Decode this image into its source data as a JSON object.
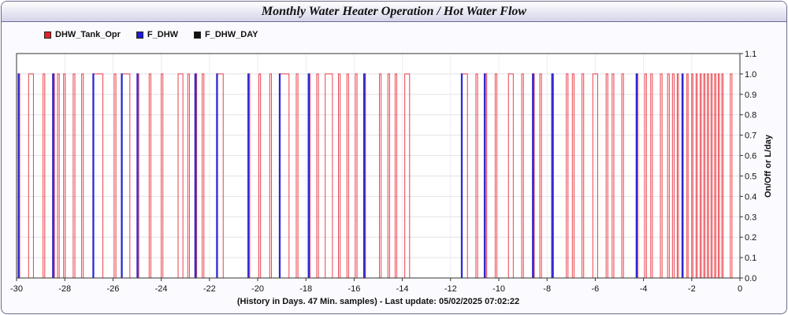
{
  "title": "Monthly Water Heater Operation / Hot Water Flow",
  "legend": [
    {
      "name": "DHW_Tank_Opr",
      "color": "#e8202a"
    },
    {
      "name": "F_DHW",
      "color": "#1c1cd8"
    },
    {
      "name": "F_DHW_DAY",
      "color": "#111111"
    }
  ],
  "chart_data": {
    "type": "line",
    "title": "Monthly Water Heater Operation / Hot Water Flow",
    "xlabel": "(History in Days. 47 Min. samples) - Last update: 05/02/2025 07:02:22",
    "ylabel": "On/Off or L/day",
    "xlim": [
      -30,
      0
    ],
    "ylim": [
      0,
      1.1
    ],
    "x_ticks": [
      "-30",
      "-28",
      "-26",
      "-24",
      "-22",
      "-20",
      "-18",
      "-16",
      "-14",
      "-12",
      "-10",
      "-8",
      "-6",
      "-4",
      "-2",
      "0"
    ],
    "x_tick_values": [
      -30,
      -28,
      -26,
      -24,
      -22,
      -20,
      -18,
      -16,
      -14,
      -12,
      -10,
      -8,
      -6,
      -4,
      -2,
      0
    ],
    "y_ticks": [
      "0.0",
      "0.1",
      "0.2",
      "0.3",
      "0.4",
      "0.5",
      "0.6",
      "0.7",
      "0.8",
      "0.9",
      "1.0",
      "1.1"
    ],
    "y_tick_values": [
      0,
      0.1,
      0.2,
      0.3,
      0.4,
      0.5,
      0.6,
      0.7,
      0.8,
      0.9,
      1.0,
      1.1
    ],
    "grid": true,
    "legend_position": "top-left",
    "series": [
      {
        "name": "DHW_Tank_Opr",
        "color": "#e8202a",
        "on_intervals": [
          [
            -29.93,
            -29.87
          ],
          [
            -29.5,
            -29.3
          ],
          [
            -28.9,
            -28.83
          ],
          [
            -28.5,
            -28.43
          ],
          [
            -28.3,
            -28.23
          ],
          [
            -28.05,
            -27.98
          ],
          [
            -27.65,
            -27.58
          ],
          [
            -27.3,
            -27.23
          ],
          [
            -26.83,
            -26.42
          ],
          [
            -25.95,
            -25.88
          ],
          [
            -25.65,
            -25.3
          ],
          [
            -25.0,
            -24.93
          ],
          [
            -24.5,
            -24.43
          ],
          [
            -24.0,
            -23.93
          ],
          [
            -23.3,
            -23.1
          ],
          [
            -22.9,
            -22.83
          ],
          [
            -22.6,
            -22.53
          ],
          [
            -22.3,
            -22.23
          ],
          [
            -21.7,
            -21.43
          ],
          [
            -20.4,
            -20.33
          ],
          [
            -19.95,
            -19.88
          ],
          [
            -19.5,
            -19.43
          ],
          [
            -19.1,
            -18.7
          ],
          [
            -18.4,
            -18.33
          ],
          [
            -17.9,
            -17.83
          ],
          [
            -17.55,
            -17.48
          ],
          [
            -17.2,
            -16.9
          ],
          [
            -16.65,
            -16.58
          ],
          [
            -16.3,
            -16.23
          ],
          [
            -15.95,
            -15.88
          ],
          [
            -15.6,
            -15.53
          ],
          [
            -14.95,
            -14.88
          ],
          [
            -14.6,
            -14.53
          ],
          [
            -14.3,
            -14.23
          ],
          [
            -13.9,
            -13.7
          ],
          [
            -11.55,
            -11.3
          ],
          [
            -10.95,
            -10.88
          ],
          [
            -10.6,
            -10.5
          ],
          [
            -10.15,
            -10.08
          ],
          [
            -9.6,
            -9.4
          ],
          [
            -9.05,
            -8.98
          ],
          [
            -8.6,
            -8.53
          ],
          [
            -8.3,
            -8.23
          ],
          [
            -7.8,
            -7.73
          ],
          [
            -7.2,
            -7.13
          ],
          [
            -6.95,
            -6.88
          ],
          [
            -6.55,
            -6.48
          ],
          [
            -6.1,
            -5.9
          ],
          [
            -5.55,
            -5.48
          ],
          [
            -5.3,
            -5.23
          ],
          [
            -4.9,
            -4.83
          ],
          [
            -4.3,
            -4.23
          ],
          [
            -3.95,
            -3.88
          ],
          [
            -3.7,
            -3.63
          ],
          [
            -3.3,
            -3.23
          ],
          [
            -3.0,
            -2.93
          ],
          [
            -2.8,
            -2.73
          ],
          [
            -2.6,
            -2.55
          ],
          [
            -2.4,
            -2.35
          ],
          [
            -2.2,
            -2.15
          ],
          [
            -2.0,
            -1.95
          ],
          [
            -1.82,
            -1.77
          ],
          [
            -1.65,
            -1.6
          ],
          [
            -1.5,
            -1.45
          ],
          [
            -1.35,
            -1.3
          ],
          [
            -1.2,
            -1.15
          ],
          [
            -1.05,
            -1.0
          ],
          [
            -0.9,
            -0.85
          ],
          [
            -0.75,
            -0.7
          ],
          [
            -0.4,
            -0.33
          ]
        ]
      },
      {
        "name": "F_DHW",
        "color": "#1c1cd8",
        "on_intervals": [
          [
            -29.93,
            -29.9
          ],
          [
            -28.5,
            -28.46
          ],
          [
            -26.83,
            -26.8
          ],
          [
            -25.65,
            -25.62
          ],
          [
            -25.0,
            -24.97
          ],
          [
            -22.6,
            -22.56
          ],
          [
            -21.7,
            -21.67
          ],
          [
            -20.4,
            -20.37
          ],
          [
            -19.1,
            -19.07
          ],
          [
            -17.9,
            -17.86
          ],
          [
            -15.6,
            -15.56
          ],
          [
            -11.55,
            -11.52
          ],
          [
            -10.6,
            -10.56
          ],
          [
            -8.6,
            -8.56
          ],
          [
            -7.8,
            -7.76
          ],
          [
            -4.3,
            -4.27
          ],
          [
            -2.4,
            -2.37
          ]
        ]
      },
      {
        "name": "F_DHW_DAY",
        "color": "#111111",
        "on_intervals": []
      }
    ]
  }
}
